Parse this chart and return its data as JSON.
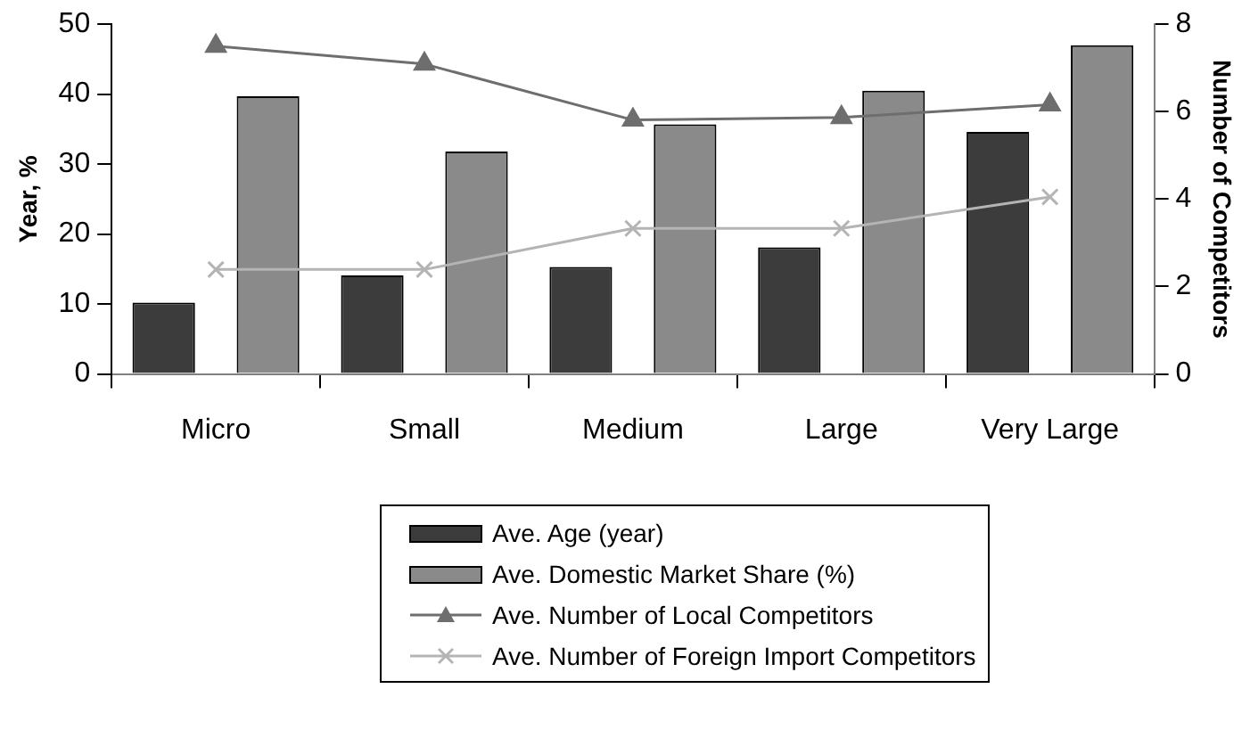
{
  "chart_data": {
    "type": "bar",
    "categories": [
      "Micro",
      "Small",
      "Medium",
      "Large",
      "Very Large"
    ],
    "ylabel": "Year, %",
    "y2label": "Number of Competitors",
    "ylim": [
      0,
      50
    ],
    "yticks": [
      0,
      10,
      20,
      30,
      40,
      50
    ],
    "y2lim": [
      0,
      8
    ],
    "y2ticks": [
      0,
      2,
      4,
      6,
      8
    ],
    "grid": false,
    "legend": "bottom",
    "series": [
      {
        "name": "Ave. Age (year)",
        "color": "#3c3c3c",
        "values": [
          10.2,
          14.1,
          15.3,
          18.1,
          34.6
        ]
      },
      {
        "name": "Ave. Domestic Market Share (%)",
        "color": "#8a8a8a",
        "values": [
          39.7,
          31.8,
          35.7,
          40.5,
          47.0
        ]
      },
      {
        "name": "Ave. Number of Local Competitors",
        "type": "line",
        "axis": "y2",
        "marker": "triangle",
        "color": "#6e6e6e",
        "values": [
          7.5,
          7.09,
          5.81,
          5.87,
          6.16
        ]
      },
      {
        "name": "Ave. Number of Foreign Import Competitors",
        "type": "line",
        "axis": "y2",
        "marker": "cross",
        "color": "#b4b4b4",
        "values": [
          2.39,
          2.39,
          3.33,
          3.33,
          4.05
        ]
      }
    ]
  }
}
